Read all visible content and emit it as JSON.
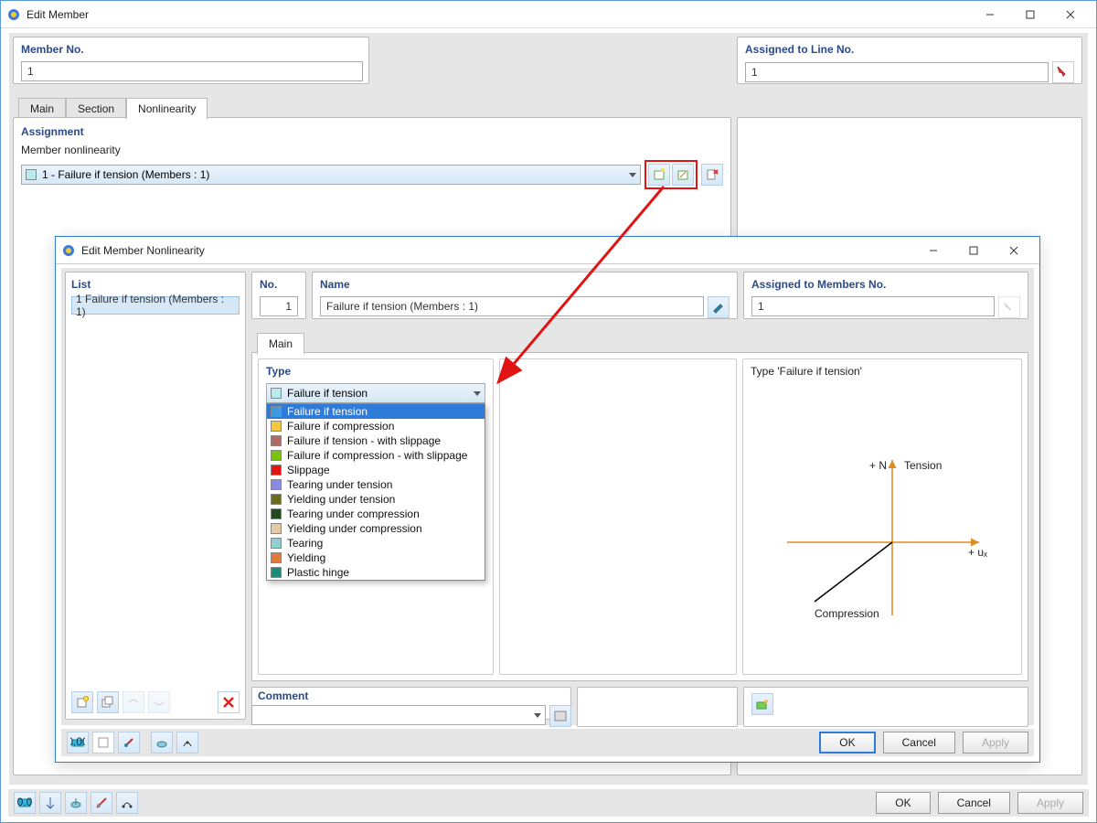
{
  "outer": {
    "title": "Edit Member",
    "memberNo": {
      "label": "Member No.",
      "value": "1"
    },
    "assignedLine": {
      "label": "Assigned to Line No.",
      "value": "1"
    },
    "tabs": [
      "Main",
      "Section",
      "Nonlinearity"
    ],
    "activeTab": 2,
    "assignment": {
      "group": "Assignment",
      "label": "Member nonlinearity",
      "value": "1 - Failure if tension (Members : 1)",
      "swatch": "#b7ecec"
    },
    "footerButtons": {
      "ok": "OK",
      "cancel": "Cancel",
      "apply": "Apply"
    }
  },
  "inner": {
    "title": "Edit Member Nonlinearity",
    "list": {
      "label": "List",
      "item": "1  Failure if tension (Members : 1)"
    },
    "no": {
      "label": "No.",
      "value": "1"
    },
    "name": {
      "label": "Name",
      "value": "Failure if tension (Members : 1)"
    },
    "assigned": {
      "label": "Assigned to Members No.",
      "value": "1"
    },
    "tabs": [
      "Main"
    ],
    "type": {
      "label": "Type",
      "selected": "Failure if tension",
      "selectedSwatch": "#b7ecec",
      "options": [
        {
          "label": "Failure if tension",
          "color": "#3b9ae1",
          "selected": true
        },
        {
          "label": "Failure if compression",
          "color": "#f5c93b"
        },
        {
          "label": "Failure if tension - with slippage",
          "color": "#b06a6a"
        },
        {
          "label": "Failure if compression - with slippage",
          "color": "#7cc20f"
        },
        {
          "label": "Slippage",
          "color": "#e11313"
        },
        {
          "label": "Tearing under tension",
          "color": "#8a8ae6"
        },
        {
          "label": "Yielding under tension",
          "color": "#6b6b1f"
        },
        {
          "label": "Tearing under compression",
          "color": "#1f4a1f"
        },
        {
          "label": "Yielding under compression",
          "color": "#e8c9a6"
        },
        {
          "label": "Tearing",
          "color": "#8fcfcf"
        },
        {
          "label": "Yielding",
          "color": "#e07b3b"
        },
        {
          "label": "Plastic hinge",
          "color": "#1f8a7a"
        }
      ]
    },
    "preview": {
      "title": "Type 'Failure if tension'",
      "labels": {
        "tension": "Tension",
        "compression": "Compression",
        "n": "+ N",
        "ux": "+ uₓ"
      },
      "axisColor": "#e08a1f",
      "lineColor": "#000000"
    },
    "comment": {
      "label": "Comment"
    },
    "footerButtons": {
      "ok": "OK",
      "cancel": "Cancel",
      "apply": "Apply"
    }
  },
  "highlight": {
    "color": "#e11313"
  }
}
